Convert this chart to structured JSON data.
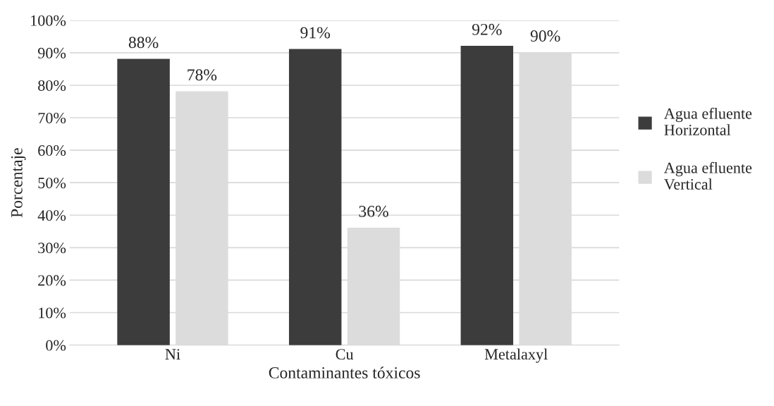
{
  "chart_data": {
    "type": "bar",
    "xlabel": "Contaminantes tóxicos",
    "ylabel": "Porcentaje",
    "categories": [
      "Ni",
      "Cu",
      "Metalaxyl"
    ],
    "series": [
      {
        "name": "Agua efluente\nHorizontal",
        "color": "#3c3c3c",
        "values": [
          88,
          91,
          92
        ],
        "value_labels": [
          "88%",
          "91%",
          "92%"
        ]
      },
      {
        "name": "Agua efluente\nVertical",
        "color": "#dcdcdc",
        "values": [
          78,
          36,
          90
        ],
        "value_labels": [
          "78%",
          "36%",
          "90%"
        ]
      }
    ],
    "ylim": [
      0,
      100
    ],
    "yticks": [
      {
        "value": 0,
        "label": "0%"
      },
      {
        "value": 10,
        "label": "10%"
      },
      {
        "value": 20,
        "label": "20%"
      },
      {
        "value": 30,
        "label": "30%"
      },
      {
        "value": 40,
        "label": "40%"
      },
      {
        "value": 50,
        "label": "50%"
      },
      {
        "value": 60,
        "label": "60%"
      },
      {
        "value": 70,
        "label": "70%"
      },
      {
        "value": 80,
        "label": "80%"
      },
      {
        "value": 90,
        "label": "90%"
      },
      {
        "value": 100,
        "label": "100%"
      }
    ],
    "grid": "y",
    "legend": "right"
  }
}
